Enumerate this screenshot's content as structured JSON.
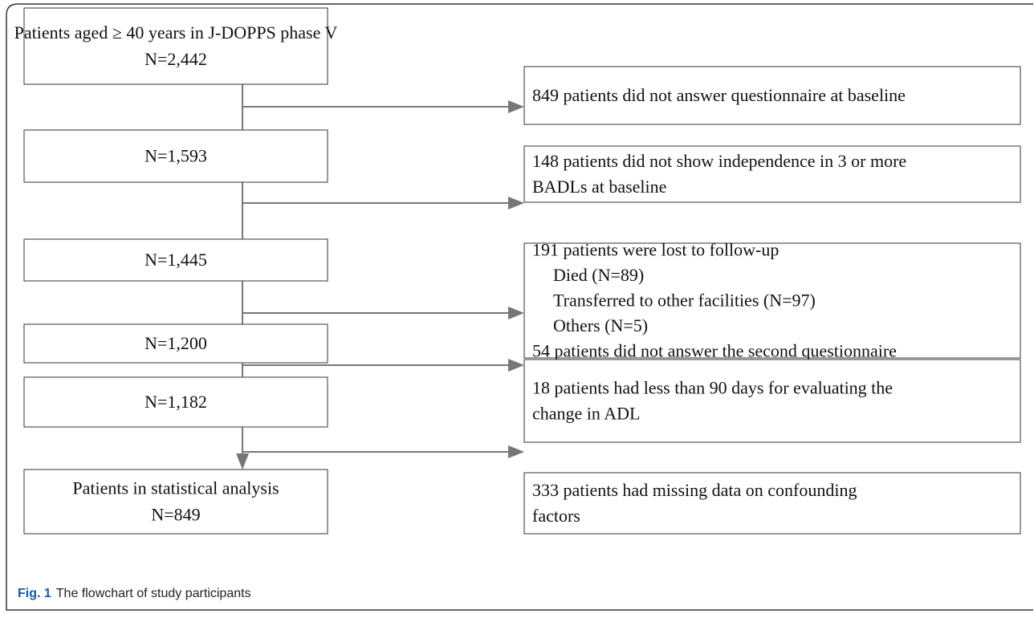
{
  "nodes": [
    {
      "lines": [
        "Patients aged ≥ 40 years in J-DOPPS phase V",
        "N=2,442"
      ]
    },
    {
      "lines": [
        "N=1,593"
      ]
    },
    {
      "lines": [
        "N=1,445"
      ]
    },
    {
      "lines": [
        "N=1,200"
      ]
    },
    {
      "lines": [
        "N=1,182"
      ]
    },
    {
      "lines": [
        "Patients in statistical analysis",
        "N=849"
      ]
    }
  ],
  "exclusions": [
    {
      "lines": [
        "849 patients did not answer questionnaire at baseline"
      ]
    },
    {
      "lines": [
        "148 patients did not show independence in 3 or more",
        "BADLs at baseline"
      ]
    },
    {
      "lines": [
        "191 patients were lost to follow-up",
        "Died (N=89)",
        "Transferred to other facilities (N=97)",
        "Others (N=5)",
        "54 patients did not answer the second questionnaire"
      ]
    },
    {
      "lines": [
        "18 patients had less than 90 days for evaluating the",
        "change in ADL"
      ]
    },
    {
      "lines": [
        "333 patients had missing data on confounding",
        "factors"
      ]
    }
  ],
  "caption": {
    "label": "Fig. 1",
    "text": "The flowchart of study participants"
  }
}
